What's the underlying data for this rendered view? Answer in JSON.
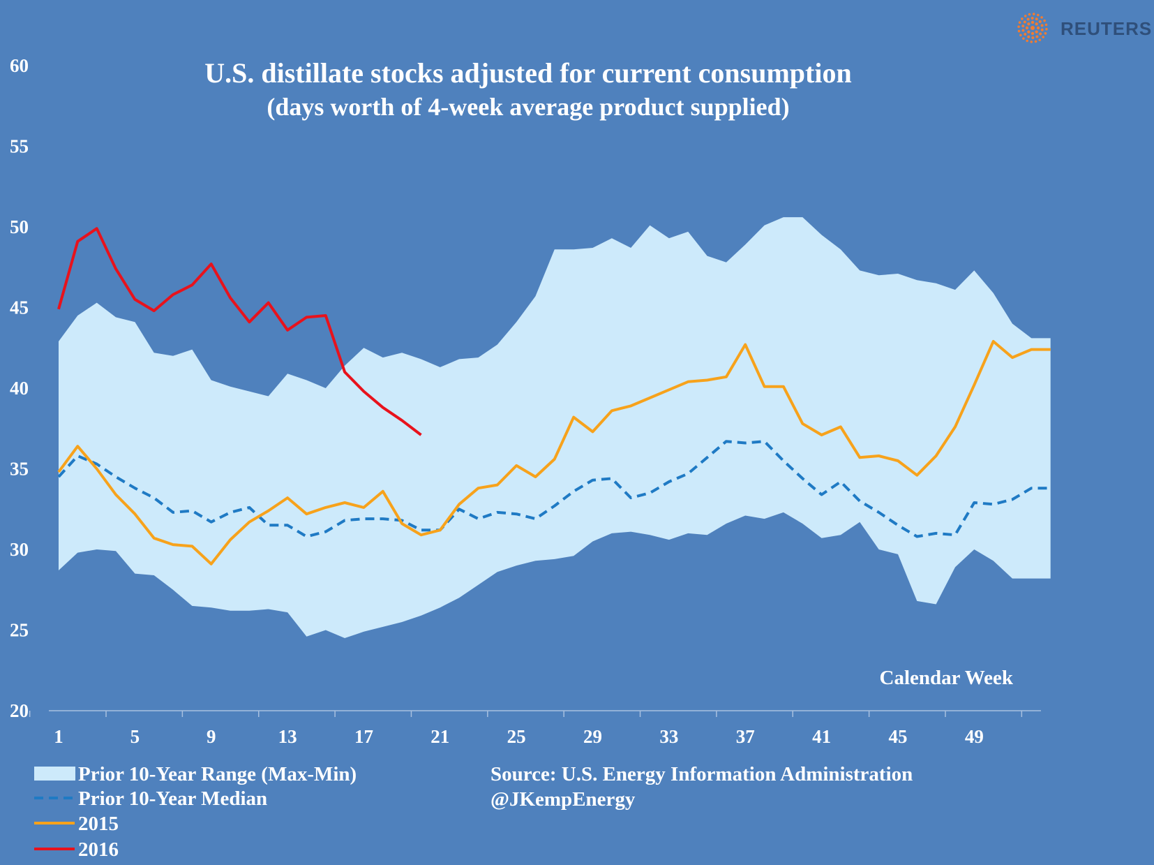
{
  "colors": {
    "background": "#4f81bd",
    "range_fill": "#cdeafb",
    "median": "#1f7ac4",
    "y2015": "#f7a21b",
    "y2016": "#e8121c",
    "text": "#ffffff",
    "brand_accent": "#f07c32"
  },
  "brand": {
    "name": "REUTERS",
    "logo_icon": "reuters-dot-logo-icon"
  },
  "chart_data": {
    "type": "line",
    "title": "U.S. distillate stocks adjusted for current consumption",
    "subtitle": "(days worth of  4-week average product supplied)",
    "xlabel": "Calendar Week",
    "ylabel": "",
    "xlim": [
      1,
      53
    ],
    "ylim": [
      20,
      60
    ],
    "x_ticks": [
      "1",
      "5",
      "9",
      "13",
      "17",
      "21",
      "25",
      "29",
      "33",
      "37",
      "41",
      "45",
      "49"
    ],
    "y_ticks": [
      "20",
      "25",
      "30",
      "35",
      "40",
      "45",
      "50",
      "55",
      "60"
    ],
    "weeks": [
      1,
      2,
      3,
      4,
      5,
      6,
      7,
      8,
      9,
      10,
      11,
      12,
      13,
      14,
      15,
      16,
      17,
      18,
      19,
      20,
      21,
      22,
      23,
      24,
      25,
      26,
      27,
      28,
      29,
      30,
      31,
      32,
      33,
      34,
      35,
      36,
      37,
      38,
      39,
      40,
      41,
      42,
      43,
      44,
      45,
      46,
      47,
      48,
      49,
      50,
      51,
      52,
      53
    ],
    "series": [
      {
        "name": "Prior 10-Year Range (Max-Min)",
        "kind": "band",
        "max": [
          42.9,
          44.5,
          45.3,
          44.4,
          44.1,
          42.2,
          42.0,
          42.4,
          40.5,
          40.1,
          39.8,
          39.5,
          40.9,
          40.5,
          40.0,
          41.4,
          42.5,
          41.9,
          42.2,
          41.8,
          41.3,
          41.8,
          41.9,
          42.7,
          44.1,
          45.7,
          48.6,
          48.6,
          48.7,
          49.3,
          48.7,
          50.1,
          49.3,
          49.7,
          48.2,
          47.8,
          48.9,
          50.1,
          50.6,
          50.6,
          49.5,
          48.6,
          47.3,
          47.0,
          47.1,
          46.7,
          46.5,
          46.1,
          47.3,
          45.9,
          44.0,
          43.1,
          43.1
        ],
        "min": [
          28.7,
          29.8,
          30.0,
          29.9,
          28.5,
          28.4,
          27.5,
          26.5,
          26.4,
          26.2,
          26.2,
          26.3,
          26.1,
          24.6,
          25.0,
          24.5,
          24.9,
          25.2,
          25.5,
          25.9,
          26.4,
          27.0,
          27.8,
          28.6,
          29.0,
          29.3,
          29.4,
          29.6,
          30.5,
          31.0,
          31.1,
          30.9,
          30.6,
          31.0,
          30.9,
          31.6,
          32.1,
          31.9,
          32.3,
          31.6,
          30.7,
          30.9,
          31.7,
          30.0,
          29.7,
          26.8,
          26.6,
          28.9,
          30.0,
          29.3,
          28.2,
          28.2,
          28.2
        ]
      },
      {
        "name": "Prior 10-Year Median",
        "kind": "dashed",
        "values": [
          34.5,
          35.8,
          35.3,
          34.5,
          33.8,
          33.2,
          32.3,
          32.4,
          31.7,
          32.3,
          32.6,
          31.5,
          31.5,
          30.8,
          31.1,
          31.8,
          31.9,
          31.9,
          31.8,
          31.2,
          31.2,
          32.5,
          31.9,
          32.3,
          32.2,
          31.9,
          32.7,
          33.6,
          34.3,
          34.4,
          33.2,
          33.5,
          34.2,
          34.7,
          35.7,
          36.7,
          36.6,
          36.7,
          35.5,
          34.4,
          33.4,
          34.2,
          33.0,
          32.3,
          31.5,
          30.8,
          31.0,
          30.9,
          32.9,
          32.8,
          33.1,
          33.8,
          33.8
        ]
      },
      {
        "name": "2015",
        "kind": "line",
        "values": [
          34.8,
          36.4,
          35.0,
          33.4,
          32.2,
          30.7,
          30.3,
          30.2,
          29.1,
          30.6,
          31.7,
          32.4,
          33.2,
          32.2,
          32.6,
          32.9,
          32.6,
          33.6,
          31.6,
          30.9,
          31.2,
          32.8,
          33.8,
          34.0,
          35.2,
          34.5,
          35.6,
          38.2,
          37.3,
          38.6,
          38.9,
          39.4,
          39.9,
          40.4,
          40.5,
          40.7,
          42.7,
          40.1,
          40.1,
          37.8,
          37.1,
          37.6,
          35.7,
          35.8,
          35.5,
          34.6,
          35.8,
          37.6,
          40.2,
          42.9,
          41.9,
          42.4,
          42.4
        ]
      },
      {
        "name": "2016",
        "kind": "line",
        "values": [
          44.9,
          49.1,
          49.9,
          47.4,
          45.5,
          44.8,
          45.8,
          46.4,
          47.7,
          45.6,
          44.1,
          45.3,
          43.6,
          44.4,
          44.5,
          41.0,
          39.8,
          38.8,
          38.0,
          37.1,
          null,
          null,
          null,
          null,
          null,
          null,
          null,
          null,
          null,
          null,
          null,
          null,
          null,
          null,
          null,
          null,
          null,
          null,
          null,
          null,
          null,
          null,
          null,
          null,
          null,
          null,
          null,
          null,
          null,
          null,
          null,
          null,
          null
        ]
      }
    ],
    "annotations": {
      "source": "Source:  U.S. Energy Information Administration",
      "author": "@JKempEnergy"
    }
  }
}
